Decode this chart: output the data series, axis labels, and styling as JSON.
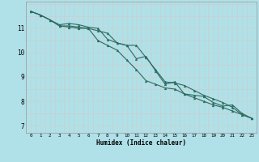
{
  "title": "",
  "xlabel": "Humidex (Indice chaleur)",
  "ylabel": "",
  "bg_color": "#b0e0e8",
  "grid_color_major": "#c0d8d0",
  "grid_color_minor": "#d4c8c8",
  "line_color": "#2d6b60",
  "marker_color": "#2d6b60",
  "xlim": [
    -0.5,
    23.5
  ],
  "ylim": [
    6.7,
    12.1
  ],
  "yticks": [
    7,
    8,
    9,
    10,
    11
  ],
  "xticks": [
    0,
    1,
    2,
    3,
    4,
    5,
    6,
    7,
    8,
    9,
    10,
    11,
    12,
    13,
    14,
    15,
    16,
    17,
    18,
    19,
    20,
    21,
    22,
    23
  ],
  "series": [
    [
      11.7,
      11.55,
      11.35,
      11.1,
      11.1,
      11.05,
      11.0,
      10.9,
      10.8,
      10.4,
      10.3,
      10.3,
      9.8,
      9.3,
      8.8,
      8.75,
      8.65,
      8.45,
      8.25,
      8.1,
      7.95,
      7.75,
      7.45,
      7.3
    ],
    [
      11.7,
      11.55,
      11.35,
      11.15,
      11.2,
      11.15,
      11.05,
      11.0,
      10.55,
      10.4,
      10.3,
      9.75,
      9.85,
      9.25,
      8.7,
      8.8,
      8.3,
      8.25,
      8.2,
      7.95,
      7.8,
      7.85,
      7.5,
      7.3
    ],
    [
      11.7,
      11.55,
      11.35,
      11.1,
      11.05,
      11.0,
      11.0,
      10.5,
      10.3,
      10.1,
      9.7,
      9.3,
      8.85,
      8.7,
      8.55,
      8.5,
      8.3,
      8.15,
      8.0,
      7.85,
      7.75,
      7.6,
      7.45,
      7.3
    ]
  ]
}
